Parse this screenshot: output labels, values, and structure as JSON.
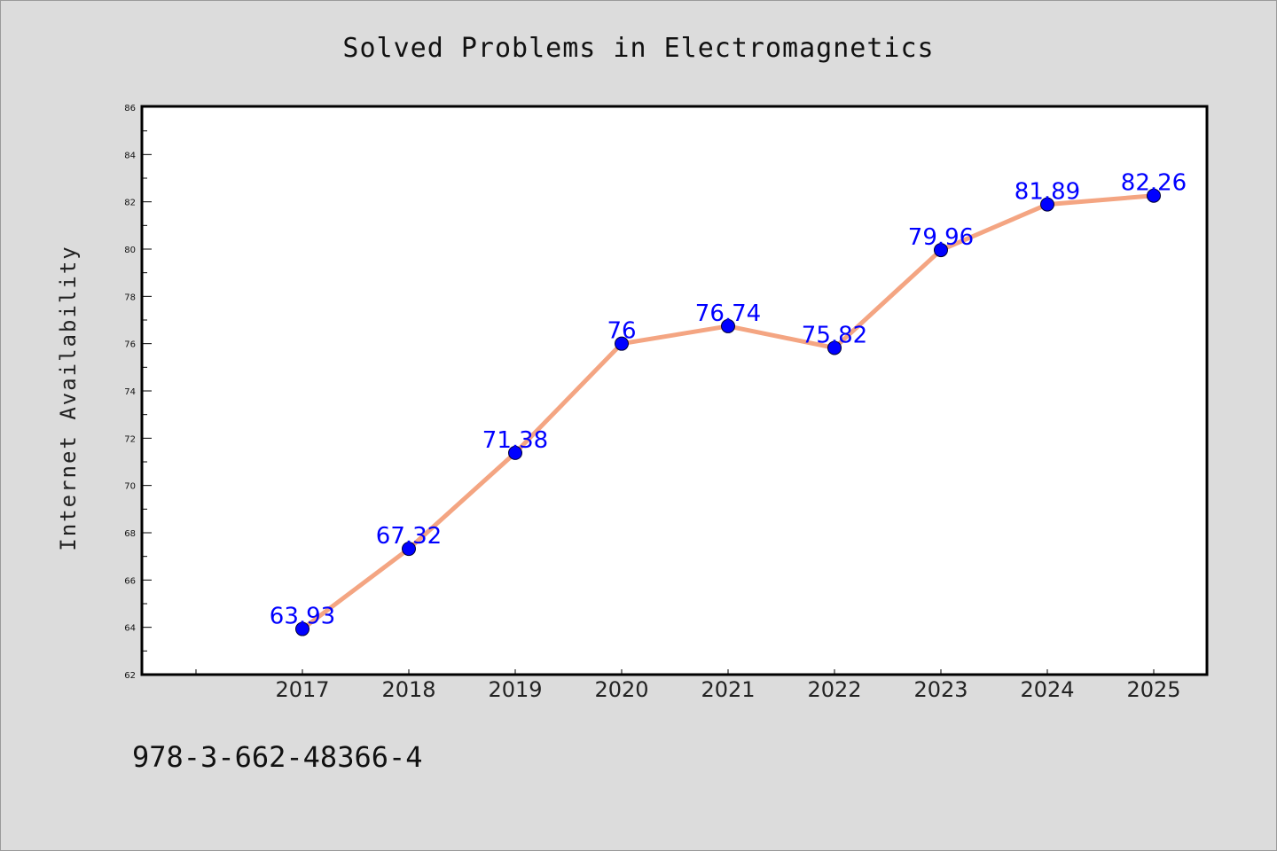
{
  "chart_data": {
    "type": "line",
    "title": "Solved Problems in Electromagnetics",
    "xlabel": "",
    "ylabel": "Internet Availability",
    "categories": [
      "2017",
      "2018",
      "2019",
      "2020",
      "2021",
      "2022",
      "2023",
      "2024",
      "2025"
    ],
    "series": [
      {
        "values": [
          63.93,
          67.32,
          71.38,
          76,
          76.74,
          75.82,
          79.96,
          81.89,
          82.26
        ],
        "line_color": "#f4a582",
        "marker_color": "#0000ff"
      }
    ],
    "data_labels": [
      "63.93",
      "67.32",
      "71.38",
      "76",
      "76.74",
      "75.82",
      "79.96",
      "81.89",
      "82.26"
    ],
    "ylim": [
      62,
      86
    ],
    "yticks": [
      "62",
      "64",
      "66",
      "68",
      "70",
      "72",
      "74",
      "76",
      "78",
      "80",
      "82",
      "84",
      "86"
    ],
    "grid": false,
    "legend": "none",
    "label_color": "#0000ff"
  },
  "footer": {
    "isbn": "978-3-662-48366-4"
  }
}
